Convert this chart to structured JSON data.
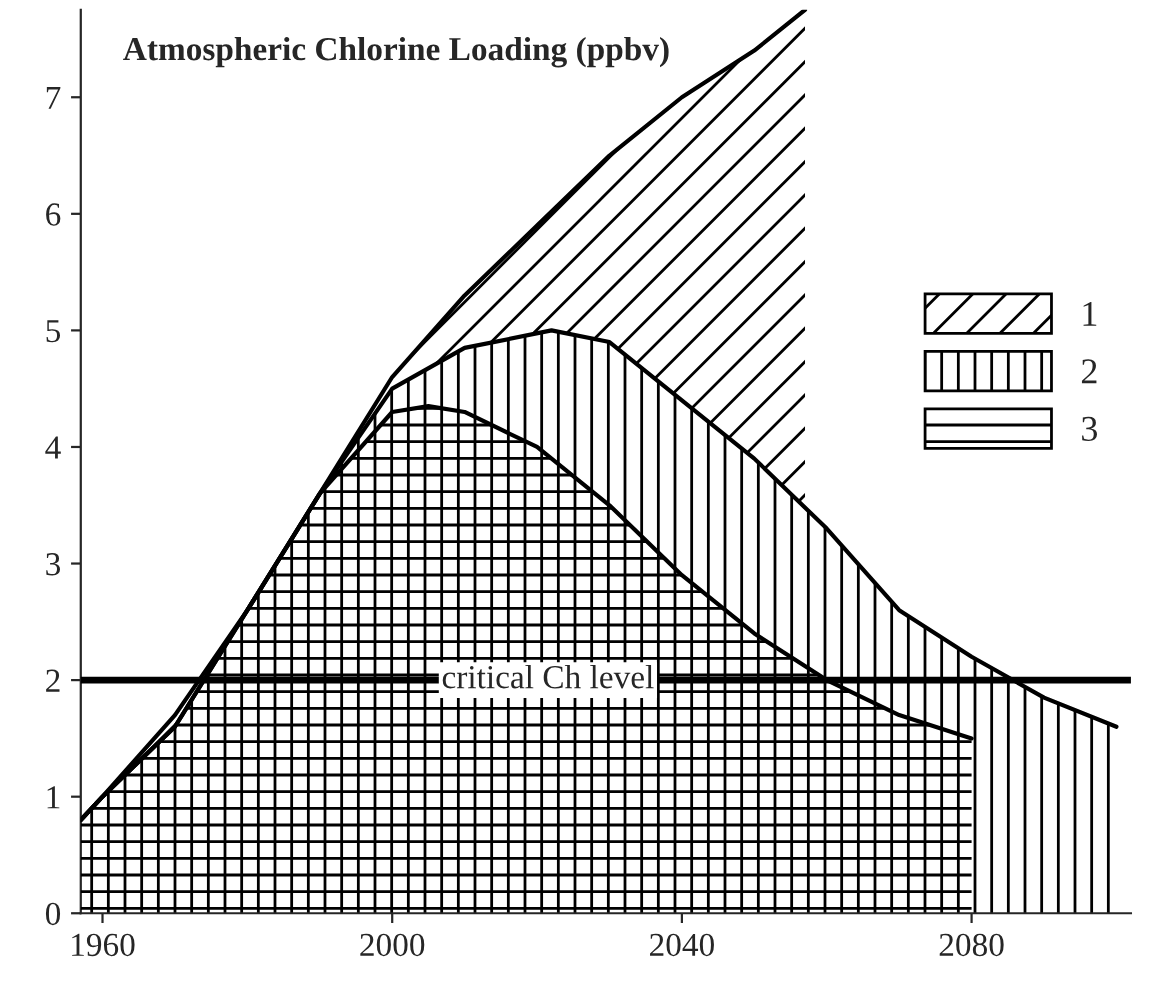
{
  "chart_data": {
    "type": "area",
    "annotations": [
      "Atmospheric Chlorine Loading (ppbv)"
    ],
    "xlim": [
      1957,
      2102
    ],
    "ylim": [
      0,
      7.75
    ],
    "xticks": [
      1960,
      2000,
      2040,
      2080
    ],
    "yticks": [
      0,
      1,
      2,
      3,
      4,
      5,
      6,
      7
    ],
    "series": [
      {
        "name": "1",
        "color": "#000000",
        "x": [
          1957,
          1960,
          1970,
          1980,
          1990,
          2000,
          2010,
          2020,
          2030,
          2040,
          2050,
          2057
        ],
        "values": [
          0.8,
          1.0,
          1.7,
          2.6,
          3.6,
          4.6,
          5.3,
          5.9,
          6.5,
          7.0,
          7.4,
          7.75
        ]
      },
      {
        "name": "2",
        "color": "#000000",
        "x": [
          1957,
          1960,
          1970,
          1980,
          1990,
          2000,
          2010,
          2022,
          2030,
          2040,
          2050,
          2060,
          2070,
          2080,
          2090,
          2100
        ],
        "values": [
          0.8,
          1.0,
          1.6,
          2.6,
          3.6,
          4.5,
          4.85,
          5.0,
          4.9,
          4.4,
          3.9,
          3.3,
          2.6,
          2.2,
          1.85,
          1.6
        ]
      },
      {
        "name": "3",
        "color": "#000000",
        "x": [
          1957,
          1960,
          1970,
          1980,
          1990,
          2000,
          2005,
          2010,
          2020,
          2030,
          2040,
          2050,
          2060,
          2070,
          2080
        ],
        "values": [
          0.8,
          1.0,
          1.6,
          2.6,
          3.6,
          4.3,
          4.35,
          4.3,
          4.0,
          3.5,
          2.9,
          2.4,
          2.0,
          1.7,
          1.5
        ]
      }
    ],
    "ref_lines": [
      {
        "axis": "y",
        "value": 2,
        "label": "critical Ch level",
        "color": "#000000"
      }
    ],
    "legend": "right",
    "grid": false
  }
}
